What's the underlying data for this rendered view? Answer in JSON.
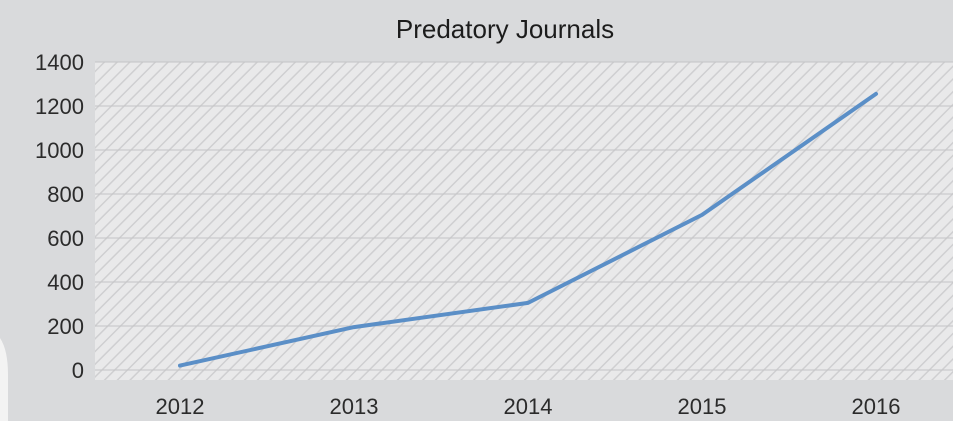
{
  "chart_data": {
    "type": "line",
    "title": "Predatory Journals",
    "xlabel": "",
    "ylabel": "",
    "categories": [
      "2012",
      "2013",
      "2014",
      "2015",
      "2016"
    ],
    "series": [
      {
        "values": [
          20,
          195,
          305,
          705,
          1255
        ]
      }
    ],
    "ylim": [
      0,
      1400
    ],
    "yticks": [
      0,
      200,
      400,
      600,
      800,
      1000,
      1200,
      1400
    ],
    "grid": true,
    "legend": "none",
    "colors": {
      "line": "#5b8fc7",
      "plot_background": "#e9e9ea",
      "hatch": "#cfcfd1",
      "gridline": "#c4c4c6",
      "page_background": "#d9dadc"
    }
  }
}
